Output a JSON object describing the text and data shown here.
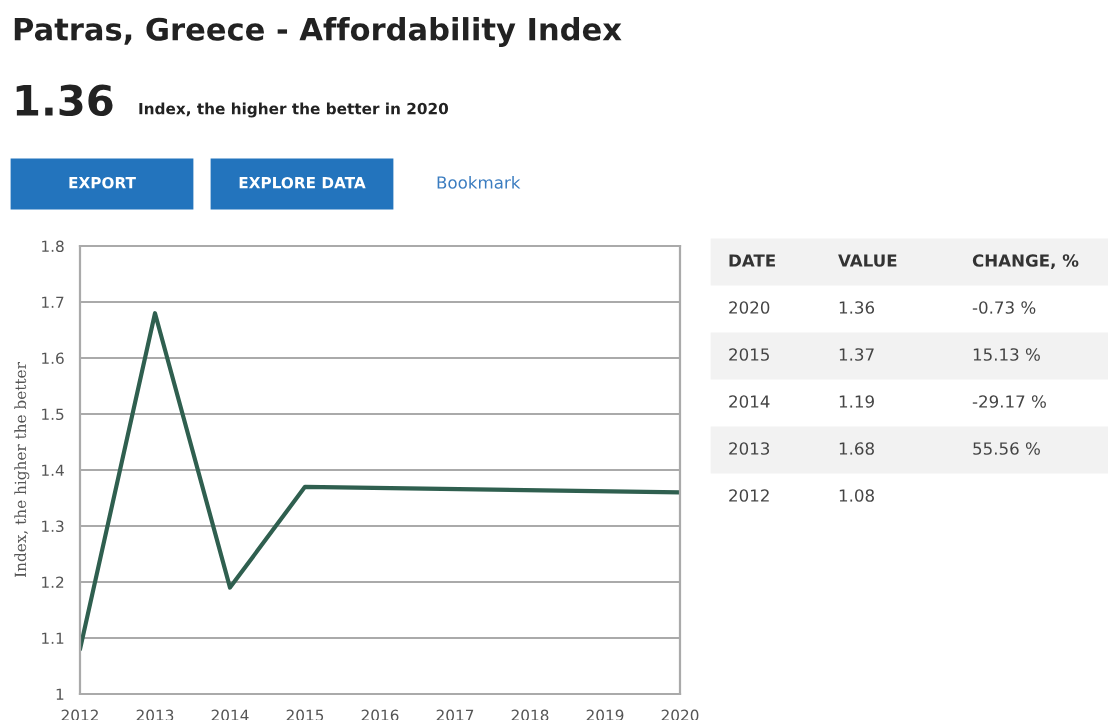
{
  "chart_data": {
    "type": "line",
    "title": "Patras, Greece - Affordability Index",
    "subtitle": "1.36",
    "ylabel": "Index, the higher the better",
    "x": [
      2012,
      2013,
      2014,
      2015,
      2020
    ],
    "series": [
      {
        "color": "#2f5f4f",
        "values": [
          1.08,
          1.68,
          1.19,
          1.37,
          1.36
        ]
      }
    ],
    "xlim": [
      2012,
      2020
    ],
    "xticks": [
      2012,
      2013,
      2014,
      2015,
      2016,
      2017,
      2018,
      2019,
      2020
    ],
    "ylim": [
      1,
      1.8
    ],
    "yticks": [
      1,
      1.1,
      1.2,
      1.3,
      1.4,
      1.5,
      1.6,
      1.7,
      1.8
    ],
    "grid": "y",
    "marker": "none",
    "line_style": "solid",
    "annotations": [
      "Index, the higher the better in 2020",
      "EXPORT",
      "EXPLORE DATA",
      "Bookmark",
      "DATE",
      "VALUE",
      "CHANGE, %",
      "2020",
      "1.36",
      "-0.73 %",
      "2015",
      "1.37",
      "15.13 %",
      "2014",
      "1.19",
      "-29.17 %",
      "2013",
      "1.68",
      "55.56 %",
      "2012",
      "1.08"
    ]
  }
}
